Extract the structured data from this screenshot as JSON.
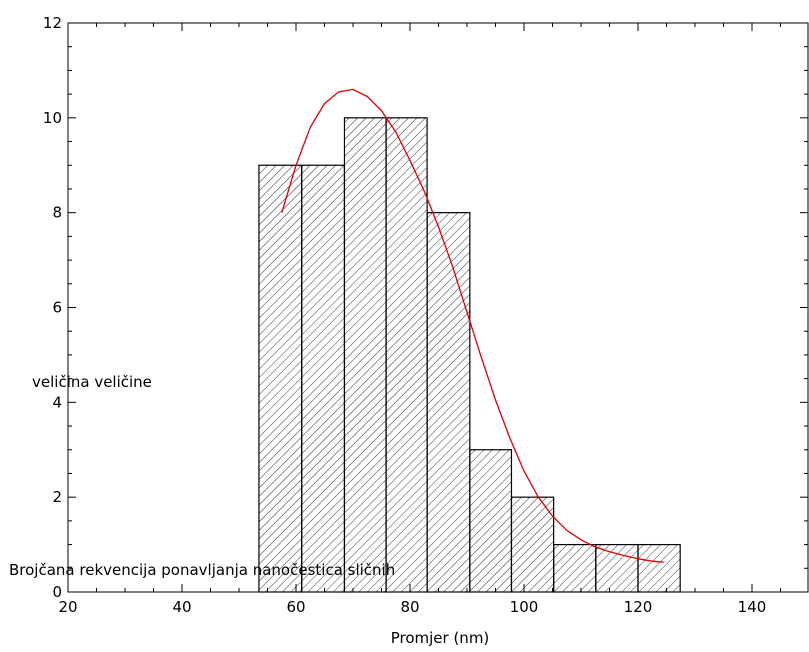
{
  "chart_data": {
    "type": "bar",
    "title": "",
    "xlabel": "Promjer (nm)",
    "ylabel": "",
    "xlim": [
      20,
      150
    ],
    "ylim": [
      0,
      12
    ],
    "x_ticks": [
      20,
      40,
      60,
      80,
      100,
      120,
      140
    ],
    "y_ticks": [
      0,
      2,
      4,
      6,
      8,
      10,
      12
    ],
    "grid": false,
    "bar_fill": "diagonal-hatch",
    "bar_color": "#000000",
    "curve_color": "#e00000",
    "bins": [
      {
        "start": 53.5,
        "end": 61.0,
        "value": 9
      },
      {
        "start": 61.0,
        "end": 68.5,
        "value": 9
      },
      {
        "start": 68.5,
        "end": 75.8,
        "value": 10
      },
      {
        "start": 75.8,
        "end": 83.0,
        "value": 10
      },
      {
        "start": 83.0,
        "end": 90.5,
        "value": 8
      },
      {
        "start": 90.5,
        "end": 97.8,
        "value": 3
      },
      {
        "start": 97.8,
        "end": 105.2,
        "value": 2
      },
      {
        "start": 105.2,
        "end": 112.6,
        "value": 1
      },
      {
        "start": 112.6,
        "end": 120.0,
        "value": 1
      },
      {
        "start": 120.0,
        "end": 127.4,
        "value": 1
      }
    ],
    "fit_curve": {
      "x": [
        57.5,
        60,
        62.5,
        65,
        67.5,
        70,
        72.5,
        75,
        77.5,
        80,
        82.5,
        85,
        87.5,
        90,
        92.5,
        95,
        97.5,
        100,
        102.5,
        105,
        107.5,
        110,
        112.5,
        115,
        117.5,
        120,
        122.5,
        124.5
      ],
      "y": [
        8.0,
        9.0,
        9.8,
        10.3,
        10.55,
        10.6,
        10.45,
        10.15,
        9.7,
        9.1,
        8.45,
        7.7,
        6.85,
        5.9,
        4.95,
        4.05,
        3.25,
        2.55,
        2.0,
        1.6,
        1.3,
        1.1,
        0.95,
        0.85,
        0.77,
        0.7,
        0.65,
        0.63
      ]
    },
    "annotations": [
      "veličina veličine",
      "Brojčana rekvencija ponavljanja nanočestica sličnih"
    ]
  }
}
